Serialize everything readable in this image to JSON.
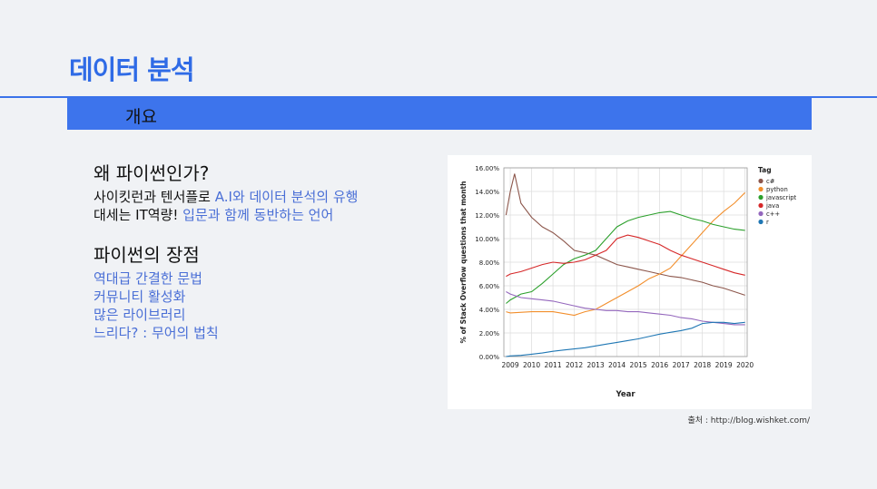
{
  "slide": {
    "title": "데이터 분석",
    "section": "개요"
  },
  "block1": {
    "heading": "왜 파이썬인가?",
    "line1_plain": "사이킷런과 텐서플로 ",
    "line1_accent": "A.I와 데이터 분석의 유행",
    "line2_plain": "대세는 IT역량! ",
    "line2_accent": "입문과 함께 동반하는 언어"
  },
  "block2": {
    "heading": "파이썬의 장점",
    "items": [
      "역대급 간결한 문법",
      "커뮤니티 활성화",
      "많은 라이브러리",
      "느리다? : 무어의 법칙"
    ]
  },
  "source": "출처 : http://blog.wishket.com/",
  "chart_data": {
    "type": "line",
    "xlabel": "Year",
    "ylabel": "% of Stack Overflow questions that month",
    "xlim": [
      2008.7,
      2020.1
    ],
    "ylim": [
      0,
      16
    ],
    "x_ticks": [
      2009,
      2010,
      2011,
      2012,
      2013,
      2014,
      2015,
      2016,
      2017,
      2018,
      2019,
      2020
    ],
    "y_ticks": [
      "0.00%",
      "2.00%",
      "4.00%",
      "6.00%",
      "8.00%",
      "10.00%",
      "12.00%",
      "14.00%",
      "16.00%"
    ],
    "grid": true,
    "legend": {
      "title": "Tag",
      "position": "top-right"
    },
    "series": [
      {
        "name": "c#",
        "color": "#8c564b",
        "x": [
          2008.8,
          2009.0,
          2009.2,
          2009.5,
          2010,
          2010.5,
          2011,
          2011.5,
          2012,
          2012.5,
          2013,
          2013.5,
          2014,
          2014.5,
          2015,
          2015.5,
          2016,
          2016.5,
          2017,
          2017.5,
          2018,
          2018.5,
          2019,
          2019.5,
          2020
        ],
        "y": [
          12.0,
          14.0,
          15.5,
          13.0,
          11.8,
          11.0,
          10.5,
          9.8,
          9.0,
          8.8,
          8.6,
          8.2,
          7.8,
          7.6,
          7.4,
          7.2,
          7.0,
          6.8,
          6.7,
          6.5,
          6.3,
          6.0,
          5.8,
          5.5,
          5.2
        ]
      },
      {
        "name": "python",
        "color": "#f28e2b",
        "x": [
          2008.8,
          2009,
          2010,
          2011,
          2012,
          2012.5,
          2013,
          2013.5,
          2014,
          2014.5,
          2015,
          2015.5,
          2016,
          2016.5,
          2017,
          2017.5,
          2018,
          2018.5,
          2019,
          2019.5,
          2020
        ],
        "y": [
          3.8,
          3.7,
          3.8,
          3.8,
          3.5,
          3.8,
          4.0,
          4.5,
          5.0,
          5.5,
          6.0,
          6.6,
          7.0,
          7.5,
          8.5,
          9.5,
          10.5,
          11.5,
          12.3,
          13.0,
          13.9
        ]
      },
      {
        "name": "javascript",
        "color": "#2ca02c",
        "x": [
          2008.8,
          2009,
          2009.5,
          2010,
          2010.5,
          2011,
          2011.5,
          2012,
          2012.5,
          2013,
          2013.5,
          2014,
          2014.5,
          2015,
          2015.5,
          2016,
          2016.5,
          2017,
          2017.5,
          2018,
          2018.5,
          2019,
          2019.5,
          2020
        ],
        "y": [
          4.5,
          4.8,
          5.3,
          5.5,
          6.2,
          7.0,
          7.8,
          8.3,
          8.6,
          9.0,
          10.0,
          11.0,
          11.5,
          11.8,
          12.0,
          12.2,
          12.3,
          12.0,
          11.7,
          11.5,
          11.2,
          11.0,
          10.8,
          10.7
        ]
      },
      {
        "name": "java",
        "color": "#d62728",
        "x": [
          2008.8,
          2009,
          2009.5,
          2010,
          2010.5,
          2011,
          2011.5,
          2012,
          2012.5,
          2013,
          2013.5,
          2014,
          2014.5,
          2015,
          2015.5,
          2016,
          2016.5,
          2017,
          2017.5,
          2018,
          2018.5,
          2019,
          2019.5,
          2020
        ],
        "y": [
          6.8,
          7.0,
          7.2,
          7.5,
          7.8,
          8.0,
          7.9,
          8.0,
          8.2,
          8.6,
          9.0,
          10.0,
          10.3,
          10.1,
          9.8,
          9.5,
          9.0,
          8.6,
          8.3,
          8.0,
          7.7,
          7.4,
          7.1,
          6.9
        ]
      },
      {
        "name": "c++",
        "color": "#9467bd",
        "x": [
          2008.8,
          2009,
          2009.5,
          2010,
          2010.5,
          2011,
          2011.5,
          2012,
          2012.5,
          2013,
          2013.5,
          2014,
          2014.5,
          2015,
          2015.5,
          2016,
          2016.5,
          2017,
          2017.5,
          2018,
          2018.5,
          2019,
          2019.5,
          2020
        ],
        "y": [
          5.5,
          5.3,
          5.0,
          4.9,
          4.8,
          4.7,
          4.5,
          4.3,
          4.1,
          4.0,
          3.9,
          3.9,
          3.8,
          3.8,
          3.7,
          3.6,
          3.5,
          3.3,
          3.2,
          3.0,
          2.9,
          2.8,
          2.7,
          2.7
        ]
      },
      {
        "name": "r",
        "color": "#1f77b4",
        "x": [
          2008.8,
          2009,
          2009.5,
          2010,
          2010.5,
          2011,
          2011.5,
          2012,
          2012.5,
          2013,
          2013.5,
          2014,
          2014.5,
          2015,
          2015.5,
          2016,
          2016.5,
          2017,
          2017.5,
          2018,
          2018.5,
          2019,
          2019.5,
          2020
        ],
        "y": [
          0.0,
          0.05,
          0.1,
          0.2,
          0.3,
          0.45,
          0.55,
          0.65,
          0.75,
          0.9,
          1.05,
          1.2,
          1.35,
          1.5,
          1.7,
          1.9,
          2.05,
          2.2,
          2.4,
          2.8,
          2.9,
          2.9,
          2.8,
          2.9
        ]
      }
    ]
  }
}
